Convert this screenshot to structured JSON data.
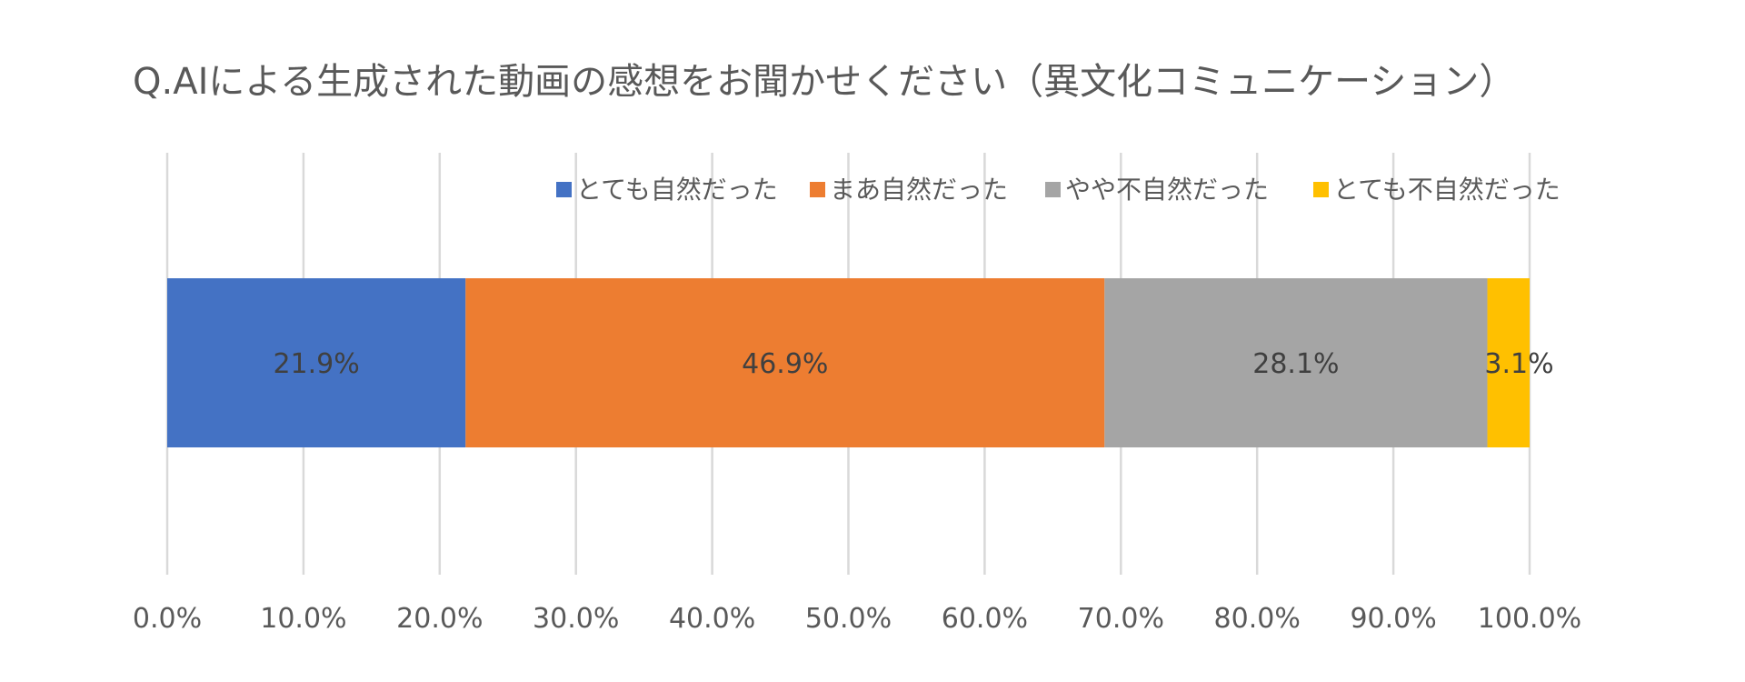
{
  "chart_data": {
    "type": "bar",
    "orientation": "horizontal",
    "stacked": true,
    "title": "Q.AIによる生成された動画の感想をお聞かせください（異文化コミュニケーション）",
    "xlabel": "",
    "ylabel": "",
    "xlim": [
      0,
      100
    ],
    "x_ticks": [
      0,
      10,
      20,
      30,
      40,
      50,
      60,
      70,
      80,
      90,
      100
    ],
    "x_tick_labels": [
      "0.0%",
      "10.0%",
      "20.0%",
      "30.0%",
      "40.0%",
      "50.0%",
      "60.0%",
      "70.0%",
      "80.0%",
      "90.0%",
      "100.0%"
    ],
    "grid": true,
    "legend_position": "top",
    "series": [
      {
        "name": "とても自然だった",
        "value": 21.9,
        "label": "21.9%",
        "color": "#4472C4"
      },
      {
        "name": "まあ自然だった",
        "value": 46.9,
        "label": "46.9%",
        "color": "#ED7D31"
      },
      {
        "name": "やや不自然だった",
        "value": 28.1,
        "label": "28.1%",
        "color": "#A5A5A5"
      },
      {
        "name": "とても不自然だった",
        "value": 3.1,
        "label": "3.1%",
        "color": "#FFC000"
      }
    ]
  }
}
